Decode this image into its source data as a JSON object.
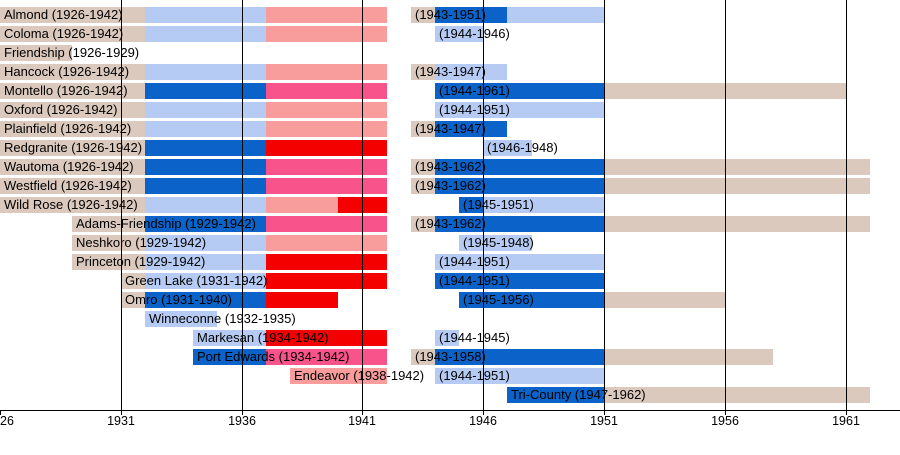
{
  "chart_data": {
    "type": "timeline",
    "title": "",
    "xlabel": "",
    "ylabel": "",
    "x_range": [
      1926,
      1963
    ],
    "grid": true,
    "colors": {
      "tan": "#dbc9bd",
      "powderblue": "#b6cbf3",
      "oceanblue": "#0b62c9",
      "salmon": "#f99c9c",
      "pink": "#f8538b",
      "red": "#f40000"
    },
    "gridline_years": [
      1931,
      1936,
      1941,
      1946,
      1951,
      1956,
      1961
    ],
    "axis": {
      "ticks": [
        {
          "year": 1926,
          "label": "26"
        },
        {
          "year": 1931,
          "label": "1931"
        },
        {
          "year": 1936,
          "label": "1936"
        },
        {
          "year": 1941,
          "label": "1941"
        },
        {
          "year": 1946,
          "label": "1946"
        },
        {
          "year": 1951,
          "label": "1951"
        },
        {
          "year": 1956,
          "label": "1956"
        },
        {
          "year": 1961,
          "label": "1961"
        }
      ]
    },
    "rows": [
      {
        "name": "Almond",
        "bars": [
          {
            "label": "Almond (1926-1942)",
            "start": 1926,
            "segments": [
              [
                1926,
                1932,
                "tan"
              ],
              [
                1932,
                1937,
                "powderblue"
              ],
              [
                1937,
                1942,
                "salmon"
              ]
            ]
          },
          {
            "label": "(1943-1951)",
            "start": 1943,
            "segments": [
              [
                1943,
                1944,
                "tan"
              ],
              [
                1944,
                1947,
                "oceanblue"
              ],
              [
                1947,
                1951,
                "powderblue"
              ]
            ]
          }
        ]
      },
      {
        "name": "Coloma",
        "bars": [
          {
            "label": "Coloma (1926-1942)",
            "start": 1926,
            "segments": [
              [
                1926,
                1932,
                "tan"
              ],
              [
                1932,
                1937,
                "powderblue"
              ],
              [
                1937,
                1942,
                "salmon"
              ]
            ]
          },
          {
            "label": "(1944-1946)",
            "start": 1944,
            "segments": [
              [
                1944,
                1946,
                "powderblue"
              ]
            ]
          }
        ]
      },
      {
        "name": "Friendship",
        "bars": [
          {
            "label": "Friendship (1926-1929)",
            "start": 1926,
            "segments": [
              [
                1926,
                1929,
                "tan"
              ]
            ]
          }
        ]
      },
      {
        "name": "Hancock",
        "bars": [
          {
            "label": "Hancock (1926-1942)",
            "start": 1926,
            "segments": [
              [
                1926,
                1932,
                "tan"
              ],
              [
                1932,
                1937,
                "powderblue"
              ],
              [
                1937,
                1942,
                "salmon"
              ]
            ]
          },
          {
            "label": "(1943-1947)",
            "start": 1943,
            "segments": [
              [
                1943,
                1944,
                "tan"
              ],
              [
                1944,
                1947,
                "powderblue"
              ]
            ]
          }
        ]
      },
      {
        "name": "Montello",
        "bars": [
          {
            "label": "Montello (1926-1942)",
            "start": 1926,
            "segments": [
              [
                1926,
                1932,
                "tan"
              ],
              [
                1932,
                1937,
                "oceanblue"
              ],
              [
                1937,
                1942,
                "pink"
              ]
            ]
          },
          {
            "label": "(1944-1961)",
            "start": 1944,
            "segments": [
              [
                1944,
                1951,
                "oceanblue"
              ],
              [
                1951,
                1961,
                "tan"
              ]
            ]
          }
        ]
      },
      {
        "name": "Oxford",
        "bars": [
          {
            "label": "Oxford (1926-1942)",
            "start": 1926,
            "segments": [
              [
                1926,
                1932,
                "tan"
              ],
              [
                1932,
                1937,
                "powderblue"
              ],
              [
                1937,
                1942,
                "salmon"
              ]
            ]
          },
          {
            "label": "(1944-1951)",
            "start": 1944,
            "segments": [
              [
                1944,
                1951,
                "powderblue"
              ]
            ]
          }
        ]
      },
      {
        "name": "Plainfield",
        "bars": [
          {
            "label": "Plainfield (1926-1942)",
            "start": 1926,
            "segments": [
              [
                1926,
                1932,
                "tan"
              ],
              [
                1932,
                1937,
                "powderblue"
              ],
              [
                1937,
                1942,
                "salmon"
              ]
            ]
          },
          {
            "label": "(1943-1947)",
            "start": 1943,
            "segments": [
              [
                1943,
                1944,
                "tan"
              ],
              [
                1944,
                1947,
                "oceanblue"
              ]
            ]
          }
        ]
      },
      {
        "name": "Redgranite",
        "bars": [
          {
            "label": "Redgranite (1926-1942)",
            "start": 1926,
            "segments": [
              [
                1926,
                1932,
                "tan"
              ],
              [
                1932,
                1937,
                "oceanblue"
              ],
              [
                1937,
                1942,
                "red"
              ]
            ]
          },
          {
            "label": "(1946-1948)",
            "start": 1946,
            "segments": [
              [
                1946,
                1948,
                "powderblue"
              ]
            ]
          }
        ]
      },
      {
        "name": "Wautoma",
        "bars": [
          {
            "label": "Wautoma (1926-1942)",
            "start": 1926,
            "segments": [
              [
                1926,
                1932,
                "tan"
              ],
              [
                1932,
                1937,
                "oceanblue"
              ],
              [
                1937,
                1942,
                "pink"
              ]
            ]
          },
          {
            "label": "(1943-1962)",
            "start": 1943,
            "segments": [
              [
                1943,
                1944,
                "tan"
              ],
              [
                1944,
                1951,
                "oceanblue"
              ],
              [
                1951,
                1962,
                "tan"
              ]
            ]
          }
        ]
      },
      {
        "name": "Westfield",
        "bars": [
          {
            "label": "Westfield (1926-1942)",
            "start": 1926,
            "segments": [
              [
                1926,
                1932,
                "tan"
              ],
              [
                1932,
                1937,
                "oceanblue"
              ],
              [
                1937,
                1942,
                "pink"
              ]
            ]
          },
          {
            "label": "(1943-1962)",
            "start": 1943,
            "segments": [
              [
                1943,
                1944,
                "tan"
              ],
              [
                1944,
                1951,
                "oceanblue"
              ],
              [
                1951,
                1962,
                "tan"
              ]
            ]
          }
        ]
      },
      {
        "name": "Wild Rose",
        "bars": [
          {
            "label": "Wild Rose (1926-1942)",
            "start": 1926,
            "segments": [
              [
                1926,
                1932,
                "tan"
              ],
              [
                1932,
                1937,
                "powderblue"
              ],
              [
                1937,
                1940,
                "salmon"
              ],
              [
                1940,
                1942,
                "red"
              ]
            ]
          },
          {
            "label": "(1945-1951)",
            "start": 1945,
            "segments": [
              [
                1945,
                1946,
                "oceanblue"
              ],
              [
                1946,
                1951,
                "powderblue"
              ]
            ]
          }
        ]
      },
      {
        "name": "Adams-Friendship",
        "bars": [
          {
            "label": "Adams-Friendship (1929-1942)",
            "start": 1929,
            "segments": [
              [
                1929,
                1932,
                "tan"
              ],
              [
                1932,
                1937,
                "oceanblue"
              ],
              [
                1937,
                1942,
                "pink"
              ]
            ]
          },
          {
            "label": "(1943-1962)",
            "start": 1943,
            "segments": [
              [
                1943,
                1944,
                "tan"
              ],
              [
                1944,
                1951,
                "oceanblue"
              ],
              [
                1951,
                1962,
                "tan"
              ]
            ]
          }
        ]
      },
      {
        "name": "Neshkoro",
        "bars": [
          {
            "label": "Neshkoro (1929-1942)",
            "start": 1929,
            "segments": [
              [
                1929,
                1932,
                "tan"
              ],
              [
                1932,
                1937,
                "powderblue"
              ],
              [
                1937,
                1942,
                "salmon"
              ]
            ]
          },
          {
            "label": "(1945-1948)",
            "start": 1945,
            "segments": [
              [
                1945,
                1948,
                "powderblue"
              ]
            ]
          }
        ]
      },
      {
        "name": "Princeton",
        "bars": [
          {
            "label": "Princeton (1929-1942)",
            "start": 1929,
            "segments": [
              [
                1929,
                1932,
                "tan"
              ],
              [
                1932,
                1937,
                "powderblue"
              ],
              [
                1937,
                1942,
                "red"
              ]
            ]
          },
          {
            "label": "(1944-1951)",
            "start": 1944,
            "segments": [
              [
                1944,
                1951,
                "powderblue"
              ]
            ]
          }
        ]
      },
      {
        "name": "Green Lake",
        "bars": [
          {
            "label": "Green Lake (1931-1942)",
            "start": 1931,
            "segments": [
              [
                1931,
                1932,
                "tan"
              ],
              [
                1932,
                1937,
                "powderblue"
              ],
              [
                1937,
                1942,
                "red"
              ]
            ]
          },
          {
            "label": "(1944-1951)",
            "start": 1944,
            "segments": [
              [
                1944,
                1951,
                "oceanblue"
              ]
            ]
          }
        ]
      },
      {
        "name": "Omro",
        "bars": [
          {
            "label": "Omro (1931-1940)",
            "start": 1931,
            "segments": [
              [
                1931,
                1932,
                "tan"
              ],
              [
                1932,
                1937,
                "oceanblue"
              ],
              [
                1937,
                1940,
                "red"
              ]
            ]
          },
          {
            "label": "(1945-1956)",
            "start": 1945,
            "segments": [
              [
                1945,
                1951,
                "oceanblue"
              ],
              [
                1951,
                1956,
                "tan"
              ]
            ]
          }
        ]
      },
      {
        "name": "Winneconne",
        "bars": [
          {
            "label": "Winneconne (1932-1935)",
            "start": 1932,
            "segments": [
              [
                1932,
                1935,
                "powderblue"
              ]
            ]
          }
        ]
      },
      {
        "name": "Markesan",
        "bars": [
          {
            "label": "Markesan (1934-1942)",
            "start": 1934,
            "segments": [
              [
                1934,
                1937,
                "powderblue"
              ],
              [
                1937,
                1942,
                "red"
              ]
            ]
          },
          {
            "label": "(1944-1945)",
            "start": 1944,
            "segments": [
              [
                1944,
                1945,
                "powderblue"
              ]
            ]
          }
        ]
      },
      {
        "name": "Port Edwards",
        "bars": [
          {
            "label": "Port Edwards (1934-1942)",
            "start": 1934,
            "segments": [
              [
                1934,
                1937,
                "oceanblue"
              ],
              [
                1937,
                1942,
                "pink"
              ]
            ]
          },
          {
            "label": "(1943-1958)",
            "start": 1943,
            "segments": [
              [
                1943,
                1944,
                "tan"
              ],
              [
                1944,
                1951,
                "oceanblue"
              ],
              [
                1951,
                1958,
                "tan"
              ]
            ]
          }
        ]
      },
      {
        "name": "Endeavor",
        "bars": [
          {
            "label": "Endeavor (1938-1942)",
            "start": 1938,
            "segments": [
              [
                1938,
                1942,
                "salmon"
              ]
            ]
          },
          {
            "label": "(1944-1951)",
            "start": 1944,
            "segments": [
              [
                1944,
                1951,
                "powderblue"
              ]
            ]
          }
        ]
      },
      {
        "name": "Tri-County",
        "bars": [
          {
            "label": "Tri-County (1947-1962)",
            "start": 1947,
            "segments": [
              [
                1947,
                1951,
                "oceanblue"
              ],
              [
                1951,
                1962,
                "tan"
              ]
            ]
          }
        ]
      }
    ]
  }
}
